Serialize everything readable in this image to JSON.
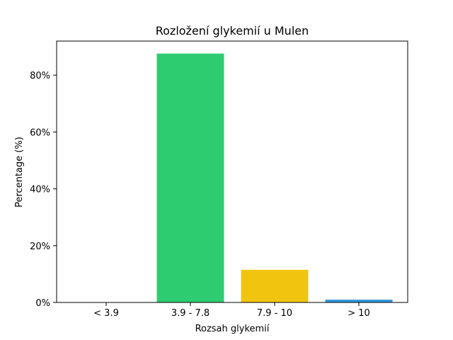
{
  "chart_data": {
    "type": "bar",
    "title": "Rozložení glykemií u  Mulen",
    "xlabel": "Rozsah glykemií",
    "ylabel": "Percentage (%)",
    "categories": [
      "< 3.9",
      "3.9 - 7.8",
      "7.9 - 10",
      "> 10"
    ],
    "values": [
      0,
      87.6,
      11.5,
      1.0
    ],
    "colors": [
      "#e74c3c",
      "#2ecc71",
      "#f1c40f",
      "#3498db"
    ],
    "ylim": [
      0,
      92
    ],
    "yticks": [
      0,
      20,
      40,
      60,
      80
    ],
    "ytick_labels": [
      "0%",
      "20%",
      "40%",
      "60%",
      "80%"
    ],
    "grid": false,
    "legend": "none"
  }
}
